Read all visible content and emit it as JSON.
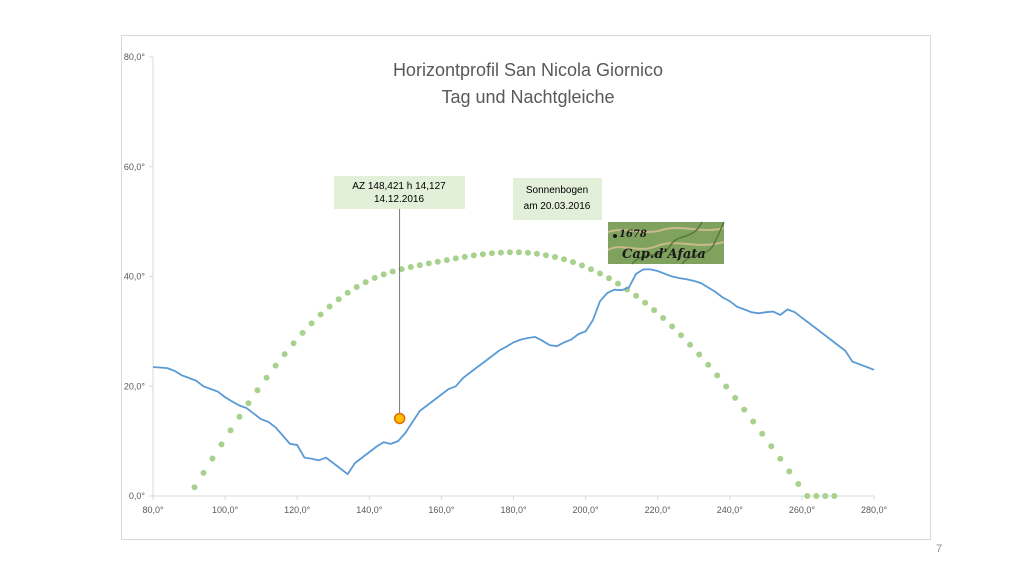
{
  "page_number": "7",
  "chart_data": {
    "type": "line",
    "title_line1": "Horizontprofil San Nicola Giornico",
    "title_line2": "Tag und Nachtgleiche",
    "xlim": [
      80,
      280
    ],
    "ylim": [
      0,
      80
    ],
    "x_ticks": [
      80,
      100,
      120,
      140,
      160,
      180,
      200,
      220,
      240,
      260,
      280
    ],
    "x_tick_labels": [
      "80,0°",
      "100,0°",
      "120,0°",
      "140,0°",
      "160,0°",
      "180,0°",
      "200,0°",
      "220,0°",
      "240,0°",
      "260,0°",
      "280,0°"
    ],
    "y_ticks": [
      0,
      20,
      40,
      60,
      80
    ],
    "y_tick_labels": [
      "0,0°",
      "20,0°",
      "40,0°",
      "60,0°",
      "80,0°"
    ],
    "grid": false,
    "series": [
      {
        "color": "#5b9bd5",
        "style": "line",
        "x": [
          80,
          84,
          86,
          88,
          90,
          92,
          94,
          96,
          98,
          100,
          102,
          104,
          106,
          108,
          110,
          112,
          114,
          116,
          118,
          120,
          122,
          124,
          126,
          128,
          130,
          132,
          134,
          136,
          138,
          140,
          142,
          144,
          146,
          148,
          150,
          152,
          154,
          156,
          158,
          160,
          162,
          164,
          166,
          168,
          170,
          172,
          174,
          176,
          178,
          180,
          182,
          184,
          186,
          188,
          190,
          192,
          194,
          196,
          198,
          200,
          202,
          204,
          206,
          208,
          210,
          212,
          214,
          216,
          218,
          220,
          222,
          224,
          226,
          228,
          230,
          232,
          234,
          236,
          238,
          240,
          242,
          244,
          246,
          248,
          250,
          252,
          254,
          256,
          258,
          260,
          262,
          264,
          266,
          268,
          270,
          272,
          274,
          276,
          278,
          280
        ],
        "y": [
          23.5,
          23.3,
          22.8,
          22.0,
          21.5,
          21.0,
          20.0,
          19.5,
          19.0,
          18.0,
          17.2,
          16.5,
          16.0,
          15.0,
          14.0,
          13.5,
          12.5,
          11.0,
          9.5,
          9.3,
          7.0,
          6.8,
          6.5,
          7.0,
          6.0,
          5.0,
          4.0,
          6.0,
          7.0,
          8.0,
          9.0,
          9.8,
          9.5,
          10.0,
          11.5,
          13.5,
          15.5,
          16.5,
          17.5,
          18.5,
          19.5,
          20.0,
          21.5,
          22.5,
          23.5,
          24.5,
          25.5,
          26.5,
          27.2,
          28.0,
          28.5,
          28.8,
          29.0,
          28.3,
          27.5,
          27.3,
          28.0,
          28.5,
          29.5,
          30.0,
          32.0,
          35.5,
          37.0,
          37.6,
          37.5,
          38.0,
          40.5,
          41.3,
          41.3,
          41.0,
          40.5,
          40.0,
          39.7,
          39.5,
          39.2,
          38.8,
          38.0,
          37.2,
          36.2,
          35.5,
          34.5,
          34.0,
          33.5,
          33.3,
          33.5,
          33.6,
          33.0,
          34.0,
          33.5,
          32.5,
          31.5,
          30.5,
          29.5,
          28.5,
          27.5,
          26.5,
          24.5,
          24.0,
          23.5,
          23.0
        ]
      },
      {
        "name": "Sonnenbogen am 20.03.2016",
        "color": "#a9d18e",
        "style": "dots",
        "x": [
          91.5,
          94,
          96.5,
          99,
          101.5,
          104,
          106.5,
          109,
          111.5,
          114,
          116.5,
          119,
          121.5,
          124,
          126.5,
          129,
          131.5,
          134,
          136.5,
          139,
          141.5,
          144,
          146.5,
          149,
          151.5,
          154,
          156.5,
          159,
          161.5,
          164,
          166.5,
          169,
          171.5,
          174,
          176.5,
          179,
          181.5,
          184,
          186.5,
          189,
          191.5,
          194,
          196.5,
          199,
          201.5,
          204,
          206.5,
          209,
          211.5,
          214,
          216.5,
          219,
          221.5,
          224,
          226.5,
          229,
          231.5,
          234,
          236.5,
          239,
          241.5,
          244,
          246.5,
          249,
          251.5,
          254,
          256.5,
          259,
          261.5,
          264,
          266.5,
          269
        ],
        "y": [
          1.58,
          4.21,
          6.83,
          9.41,
          11.96,
          14.46,
          16.9,
          19.27,
          21.56,
          23.76,
          25.86,
          27.85,
          29.72,
          31.46,
          33.07,
          34.54,
          35.87,
          37.05,
          38.09,
          38.98,
          39.74,
          40.38,
          40.91,
          41.35,
          41.73,
          42.07,
          42.38,
          42.69,
          42.99,
          43.29,
          43.57,
          43.84,
          44.06,
          44.24,
          44.36,
          44.42,
          44.41,
          44.32,
          44.15,
          43.89,
          43.56,
          43.13,
          42.62,
          42.02,
          41.33,
          40.55,
          39.67,
          38.7,
          37.64,
          36.48,
          35.23,
          33.88,
          32.44,
          30.9,
          29.28,
          27.57,
          25.78,
          23.91,
          21.97,
          19.95,
          17.88,
          15.75,
          13.57,
          11.34,
          9.08,
          6.8,
          4.49,
          2.18,
          0.0,
          0.0,
          0.0,
          0.0
        ]
      }
    ],
    "highlight_point": {
      "x": 148.421,
      "y": 14.127
    },
    "annotations": {
      "point_line1": "AZ 148,421 h 14,127",
      "point_line2": "14.12.2016",
      "sun_line1": "Sonnenbogen",
      "sun_line2": "am 20.03.2016"
    },
    "map_inset": {
      "line1": "1678",
      "line2": "Cap.d'Afata",
      "colors": {
        "green": "#7fa35e",
        "dark_green": "#557a3c",
        "contour": "#c9b98e"
      }
    }
  }
}
